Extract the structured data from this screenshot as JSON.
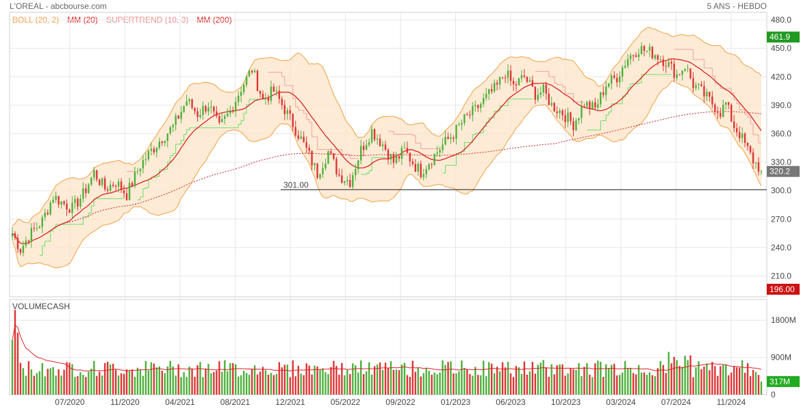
{
  "header": {
    "title": "L'OREAL - abcbourse.com",
    "period": "5 ANS - HEBDO"
  },
  "legend": [
    {
      "label": "BOLL (20, 2)",
      "color": "#f0a040"
    },
    {
      "label": "MM (20)",
      "color": "#dd2222"
    },
    {
      "label": "SUPERTREND (10, 3)",
      "color": "#f08a8a"
    },
    {
      "label": "MM (200)",
      "color": "#dd2222"
    }
  ],
  "colors": {
    "up": "#4caf3a",
    "down": "#dd3333",
    "boll": "#f0a040",
    "boll_fill": "#fde6cc",
    "mm20": "#dd2222",
    "mm200": "#cc2222",
    "supertrend_up": "#66dd66",
    "supertrend_down": "#f2a0a0"
  },
  "chart_data": [
    {
      "type": "candlestick",
      "title": "L'OREAL",
      "x_tick_labels": [
        "07/2020",
        "11/2020",
        "04/2021",
        "08/2021",
        "12/2021",
        "05/2022",
        "09/2022",
        "01/2023",
        "06/2023",
        "10/2023",
        "03/2024",
        "07/2024",
        "11/2024"
      ],
      "y_ticks": [
        210,
        240,
        270,
        300,
        330,
        360,
        390,
        420,
        450,
        480
      ],
      "y_tick_labels": [
        "210.0",
        "240.0",
        "270.0",
        "300.0",
        "330.0",
        "360.0",
        "390.0",
        "420.0",
        "450.0",
        "480.0"
      ],
      "ylim": [
        188,
        488
      ],
      "max_label": "461.9",
      "min_label": "196.00",
      "last_label": "320.2",
      "last_value": 320.2,
      "support_level": 301.0,
      "support_label": "301.00",
      "close_path": [
        [
          0,
          255
        ],
        [
          3,
          238
        ],
        [
          6,
          252
        ],
        [
          11,
          268
        ],
        [
          15,
          294
        ],
        [
          18,
          288
        ],
        [
          22,
          281
        ],
        [
          26,
          296
        ],
        [
          30,
          319
        ],
        [
          34,
          302
        ],
        [
          38,
          309
        ],
        [
          42,
          296
        ],
        [
          47,
          327
        ],
        [
          51,
          342
        ],
        [
          55,
          356
        ],
        [
          59,
          367
        ],
        [
          64,
          395
        ],
        [
          68,
          381
        ],
        [
          72,
          391
        ],
        [
          76,
          366
        ],
        [
          80,
          384
        ],
        [
          84,
          408
        ],
        [
          88,
          428
        ],
        [
          92,
          396
        ],
        [
          96,
          405
        ],
        [
          100,
          386
        ],
        [
          104,
          365
        ],
        [
          108,
          343
        ],
        [
          112,
          318
        ],
        [
          116,
          341
        ],
        [
          120,
          316
        ],
        [
          124,
          310
        ],
        [
          128,
          343
        ],
        [
          132,
          363
        ],
        [
          136,
          349
        ],
        [
          140,
          330
        ],
        [
          144,
          342
        ],
        [
          148,
          326
        ],
        [
          150,
          320
        ],
        [
          154,
          334
        ],
        [
          158,
          348
        ],
        [
          162,
          360
        ],
        [
          166,
          375
        ],
        [
          170,
          385
        ],
        [
          174,
          398
        ],
        [
          178,
          410
        ],
        [
          181,
          425
        ],
        [
          184,
          410
        ],
        [
          188,
          420
        ],
        [
          192,
          402
        ],
        [
          195,
          405
        ],
        [
          198,
          390
        ],
        [
          202,
          382
        ],
        [
          206,
          370
        ],
        [
          210,
          392
        ],
        [
          214,
          386
        ],
        [
          218,
          412
        ],
        [
          222,
          420
        ],
        [
          226,
          440
        ],
        [
          230,
          450
        ],
        [
          233,
          447
        ],
        [
          236,
          444
        ],
        [
          240,
          436
        ],
        [
          244,
          422
        ],
        [
          247,
          432
        ],
        [
          250,
          412
        ],
        [
          253,
          404
        ],
        [
          256,
          395
        ],
        [
          260,
          383
        ],
        [
          262,
          392
        ],
        [
          265,
          368
        ],
        [
          267,
          360
        ],
        [
          270,
          343
        ],
        [
          272,
          332
        ],
        [
          275,
          322
        ]
      ],
      "weeks": 275
    },
    {
      "type": "bar",
      "title": "VOLUMECASH",
      "y_ticks": [
        0,
        900,
        1800
      ],
      "y_tick_labels": [
        "0",
        "900M",
        "1800M"
      ],
      "ylim": [
        0,
        2300
      ],
      "last_label": "317M",
      "last_value": 317
    }
  ]
}
